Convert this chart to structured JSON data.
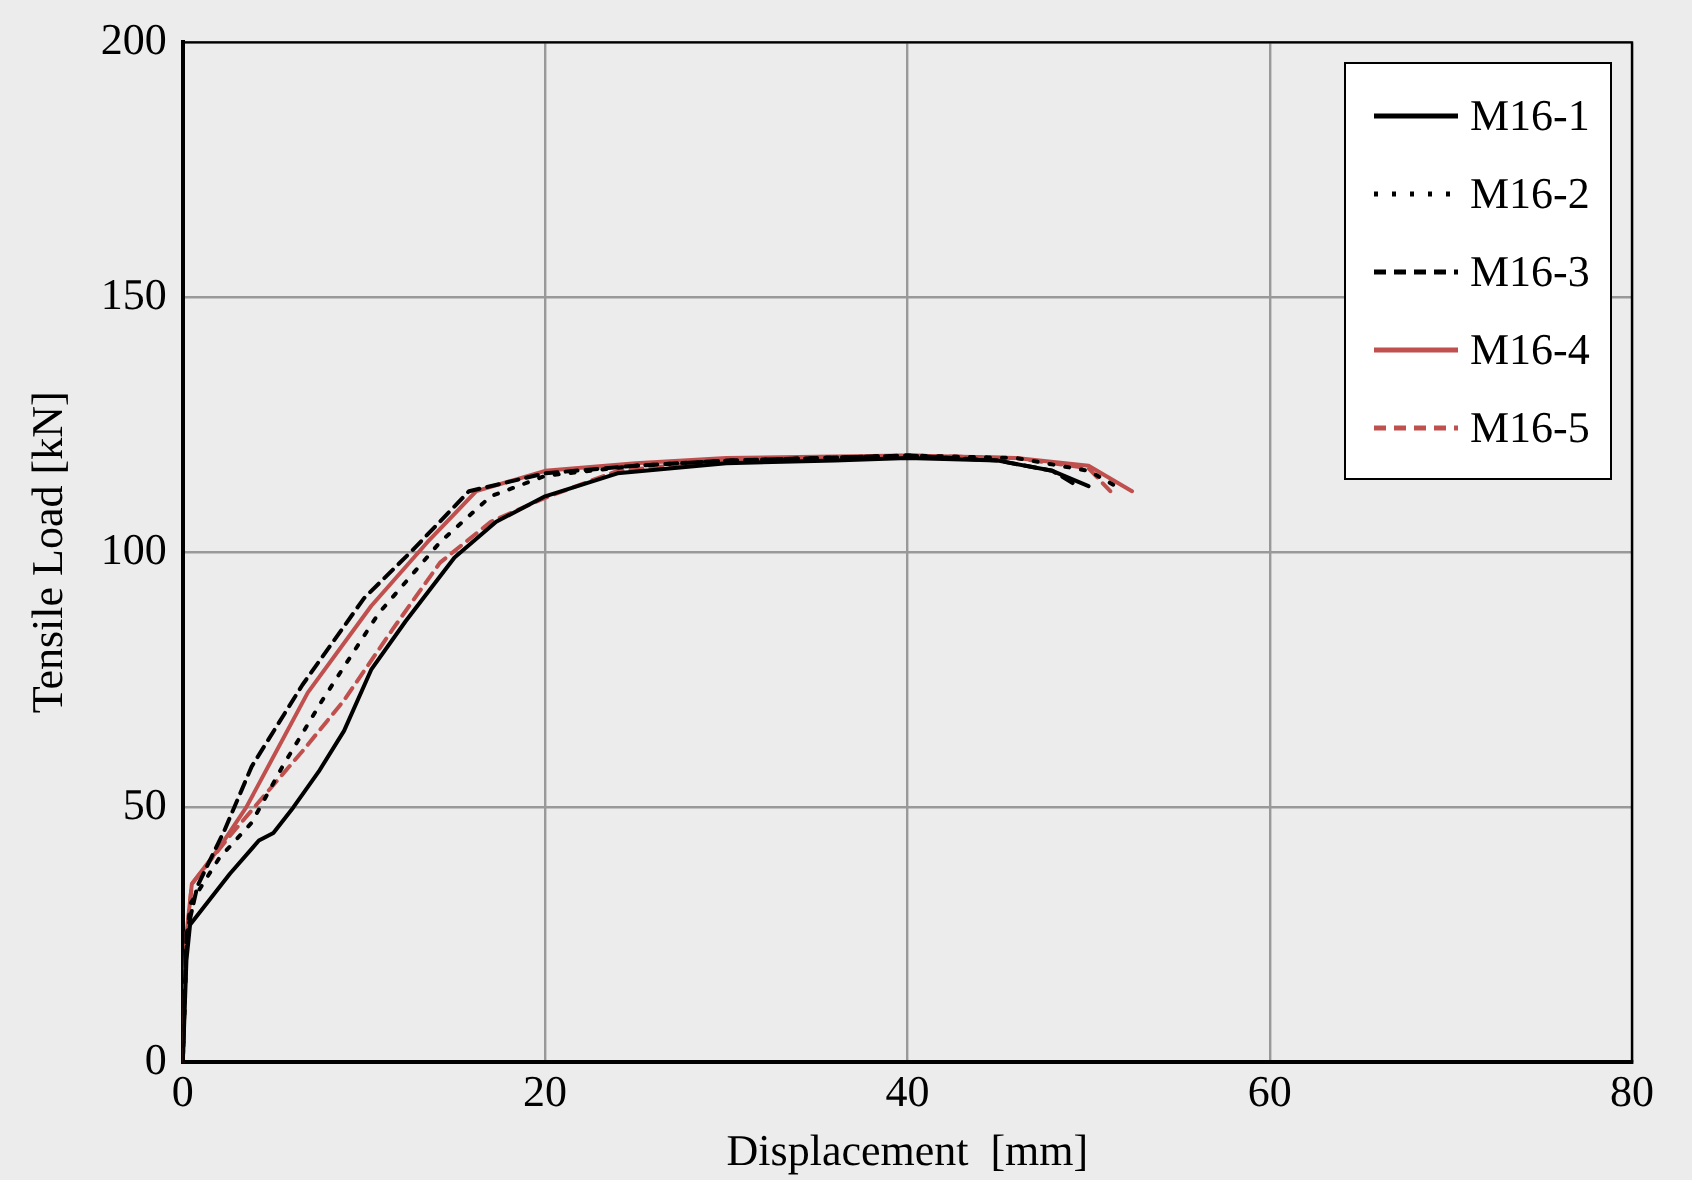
{
  "chart_data": {
    "type": "line",
    "xlabel": "Displacement  [mm]",
    "ylabel": "Tensile Load [kN]",
    "xlim": [
      0,
      80
    ],
    "xticks": [
      0,
      20,
      40,
      60,
      80
    ],
    "ylim": [
      0,
      200
    ],
    "yticks": [
      0,
      50,
      100,
      150,
      200
    ],
    "grid": true,
    "legend": "top right",
    "marker": "none",
    "series": [
      {
        "name": "M16-1",
        "color": "#000000",
        "line_style": "solid",
        "x": [
          0,
          0.2,
          0.4,
          1.5,
          2.6,
          4.2,
          5,
          6.1,
          7.5,
          8.9,
          10.4,
          12.3,
          15,
          17.3,
          20,
          24,
          30,
          36,
          40,
          45,
          48,
          50
        ],
        "values": [
          0,
          20,
          27,
          32,
          37,
          43.5,
          45,
          50,
          57,
          65,
          77,
          86.5,
          99,
          106,
          111,
          115.5,
          117.5,
          118,
          118.5,
          118,
          116,
          113
        ]
      },
      {
        "name": "M16-2",
        "color": "#000000",
        "line_style": "dotted",
        "x": [
          0,
          0.2,
          0.4,
          2,
          3.8,
          5.5,
          7.7,
          10.8,
          14.2,
          17,
          20,
          25,
          30,
          40,
          46,
          50,
          51.5
        ],
        "values": [
          0,
          22,
          31,
          40,
          47,
          58,
          71,
          88,
          102,
          111,
          115,
          117,
          118,
          119,
          118.5,
          116,
          113
        ]
      },
      {
        "name": "M16-3",
        "color": "#000000",
        "line_style": "dashed",
        "x": [
          0,
          0.2,
          0.8,
          2.3,
          3.8,
          6.6,
          10,
          12.7,
          15.8,
          20,
          25,
          30,
          40,
          45,
          48,
          49.4
        ],
        "values": [
          0,
          25,
          34.5,
          45.5,
          58,
          74,
          91,
          100.5,
          112,
          115.5,
          117,
          118,
          119,
          118,
          116,
          113
        ]
      },
      {
        "name": "M16-4",
        "color": "#c0504d",
        "line_style": "solid",
        "x": [
          0,
          0.2,
          0.5,
          2,
          3.5,
          6.9,
          10.4,
          13.5,
          16.2,
          20,
          25,
          30,
          40,
          46,
          50,
          52.4
        ],
        "values": [
          0,
          25,
          35,
          42,
          50,
          72.5,
          89.5,
          102,
          112,
          116,
          117.5,
          118.5,
          119,
          118.5,
          117,
          112
        ]
      },
      {
        "name": "M16-5",
        "color": "#c0504d",
        "line_style": "dashed",
        "x": [
          0,
          0.2,
          0.5,
          2.5,
          4.3,
          6.6,
          8.9,
          11.6,
          14.2,
          17,
          20,
          24,
          30,
          40,
          46,
          50,
          51.2
        ],
        "values": [
          0,
          24,
          35,
          44,
          51.5,
          61,
          71,
          85,
          98,
          106,
          110.7,
          116,
          118,
          119,
          118.5,
          116.5,
          112
        ]
      }
    ]
  }
}
